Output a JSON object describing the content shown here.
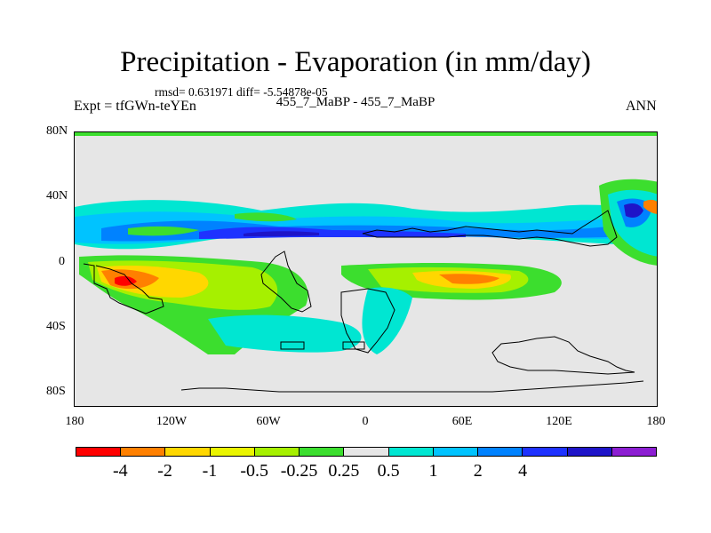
{
  "title": "Precipitation - Evaporation (in mm/day)",
  "stats": "rmsd= 0.631971 diff= -5.54878e-05",
  "expt": "Expt = tfGWn-teYEn",
  "case": "455_7_MaBP - 455_7_MaBP",
  "season": "ANN",
  "lat_ticks": [
    "80N",
    "40N",
    "0",
    "40S",
    "80S"
  ],
  "lon_ticks": [
    "180",
    "120W",
    "60W",
    "0",
    "60E",
    "120E",
    "180"
  ],
  "colorbar": {
    "colors": [
      "#ff0000",
      "#ff8000",
      "#ffd700",
      "#eaf500",
      "#a6f000",
      "#3cde2e",
      "#e6e6e6",
      "#00e6d2",
      "#00c3ff",
      "#0082ff",
      "#1e32ff",
      "#1e14c8",
      "#8c1ed2"
    ],
    "labels": [
      "-4",
      "-2",
      "-1",
      "-0.5",
      "-0.25",
      "0.25",
      "0.5",
      "1",
      "2",
      "4"
    ]
  }
}
